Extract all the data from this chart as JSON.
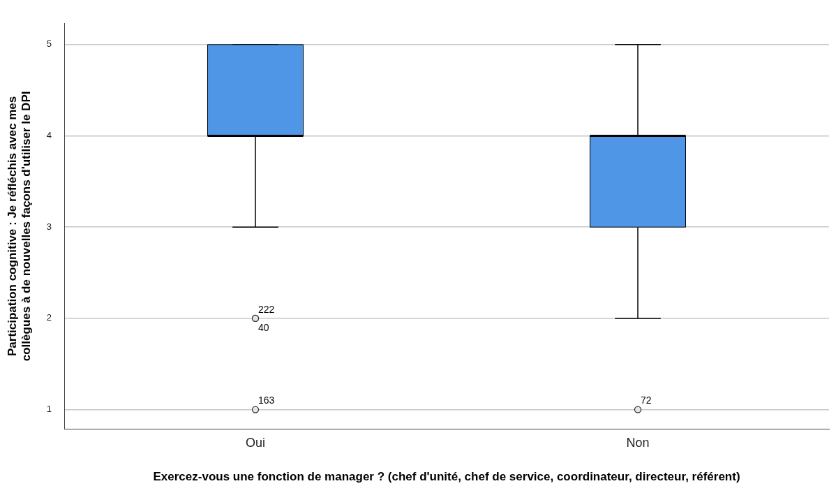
{
  "chart_data": {
    "type": "box",
    "xlabel": "Exercez-vous une fonction de manager ? (chef d'unité, chef de service, coordinateur, directeur, référent)",
    "ylabel": "Participation cognitive : Je réfléchis avec mes collègues à de nouvelles façons d'utiliser le DPI",
    "categories": [
      "Oui",
      "Non"
    ],
    "color": "#5096e6",
    "boxes": [
      {
        "low": 3,
        "q1": 4,
        "median": 4,
        "q3": 5,
        "high": 5
      },
      {
        "low": 2,
        "q1": 3,
        "median": 4,
        "q3": 4,
        "high": 5
      }
    ],
    "series": [
      {
        "type": "scatter",
        "name": "222",
        "color": "#333333",
        "marker": "circle",
        "x": [
          "Oui"
        ],
        "values": [
          2
        ]
      },
      {
        "type": "scatter",
        "name": "40",
        "color": "#333333",
        "marker": "circle",
        "x": [
          "Oui"
        ],
        "values": [
          2
        ]
      },
      {
        "type": "scatter",
        "name": "163",
        "color": "#333333",
        "marker": "circle",
        "x": [
          "Oui"
        ],
        "values": [
          1
        ]
      },
      {
        "type": "scatter",
        "name": "72",
        "color": "#333333",
        "marker": "circle",
        "x": [
          "Non"
        ],
        "values": [
          1
        ]
      }
    ],
    "ylim": [
      0.79,
      5.23
    ],
    "yticks": [
      1,
      2,
      3,
      4,
      5
    ],
    "grid": "y",
    "legend": false
  }
}
